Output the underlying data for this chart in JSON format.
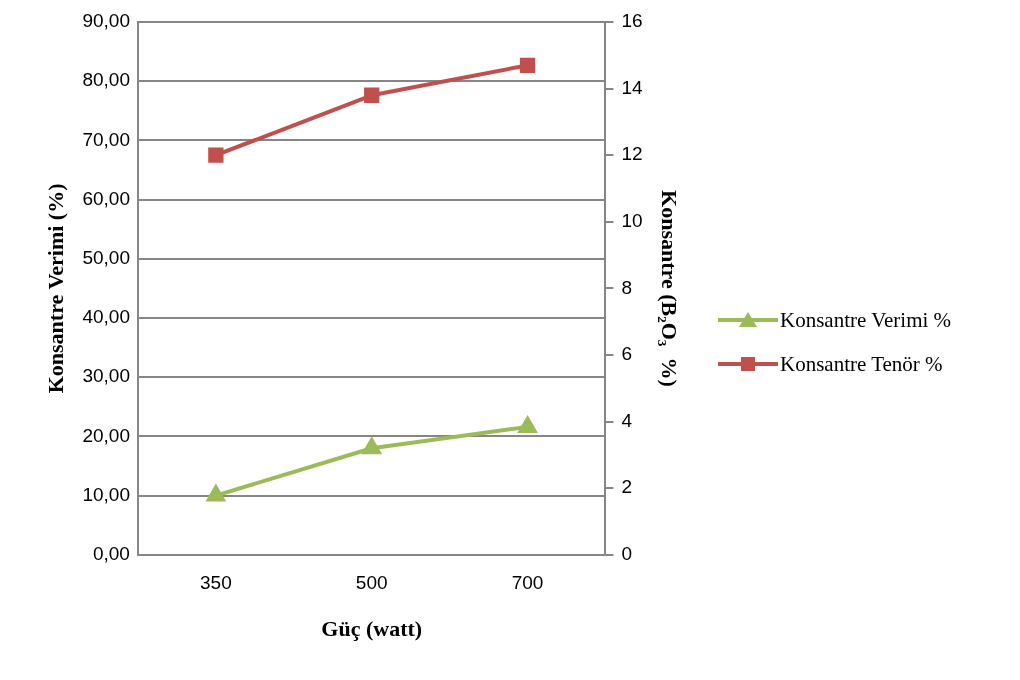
{
  "chart_data": {
    "type": "line",
    "xlabel": "Güç (watt)",
    "ylabel": "Konsantre Verimi (%)",
    "y2label": "Konsantre (B₂O₃  %)",
    "categories": [
      "350",
      "500",
      "700"
    ],
    "series": [
      {
        "name": "Konsantre Verimi %",
        "color": "#9bbb59",
        "marker": "triangle",
        "values": [
          10.0,
          18.0,
          21.6
        ]
      },
      {
        "name": "Konsantre Tenör %",
        "color": "#c0504d",
        "marker": "square",
        "axis": "y2",
        "values": [
          12.0,
          13.8,
          14.7
        ]
      }
    ],
    "ylim": [
      0,
      90
    ],
    "yticks": [
      {
        "value": 0,
        "label": "0,00"
      },
      {
        "value": 10,
        "label": "10,00"
      },
      {
        "value": 20,
        "label": "20,00"
      },
      {
        "value": 30,
        "label": "30,00"
      },
      {
        "value": 40,
        "label": "40,00"
      },
      {
        "value": 50,
        "label": "50,00"
      },
      {
        "value": 60,
        "label": "60,00"
      },
      {
        "value": 70,
        "label": "70,00"
      },
      {
        "value": 80,
        "label": "80,00"
      },
      {
        "value": 90,
        "label": "90,00"
      }
    ],
    "y2lim": [
      0,
      16
    ],
    "y2ticks": [
      0,
      2,
      4,
      6,
      8,
      10,
      12,
      14,
      16
    ],
    "grid": "y",
    "legend": "right",
    "line_style": "solid"
  }
}
